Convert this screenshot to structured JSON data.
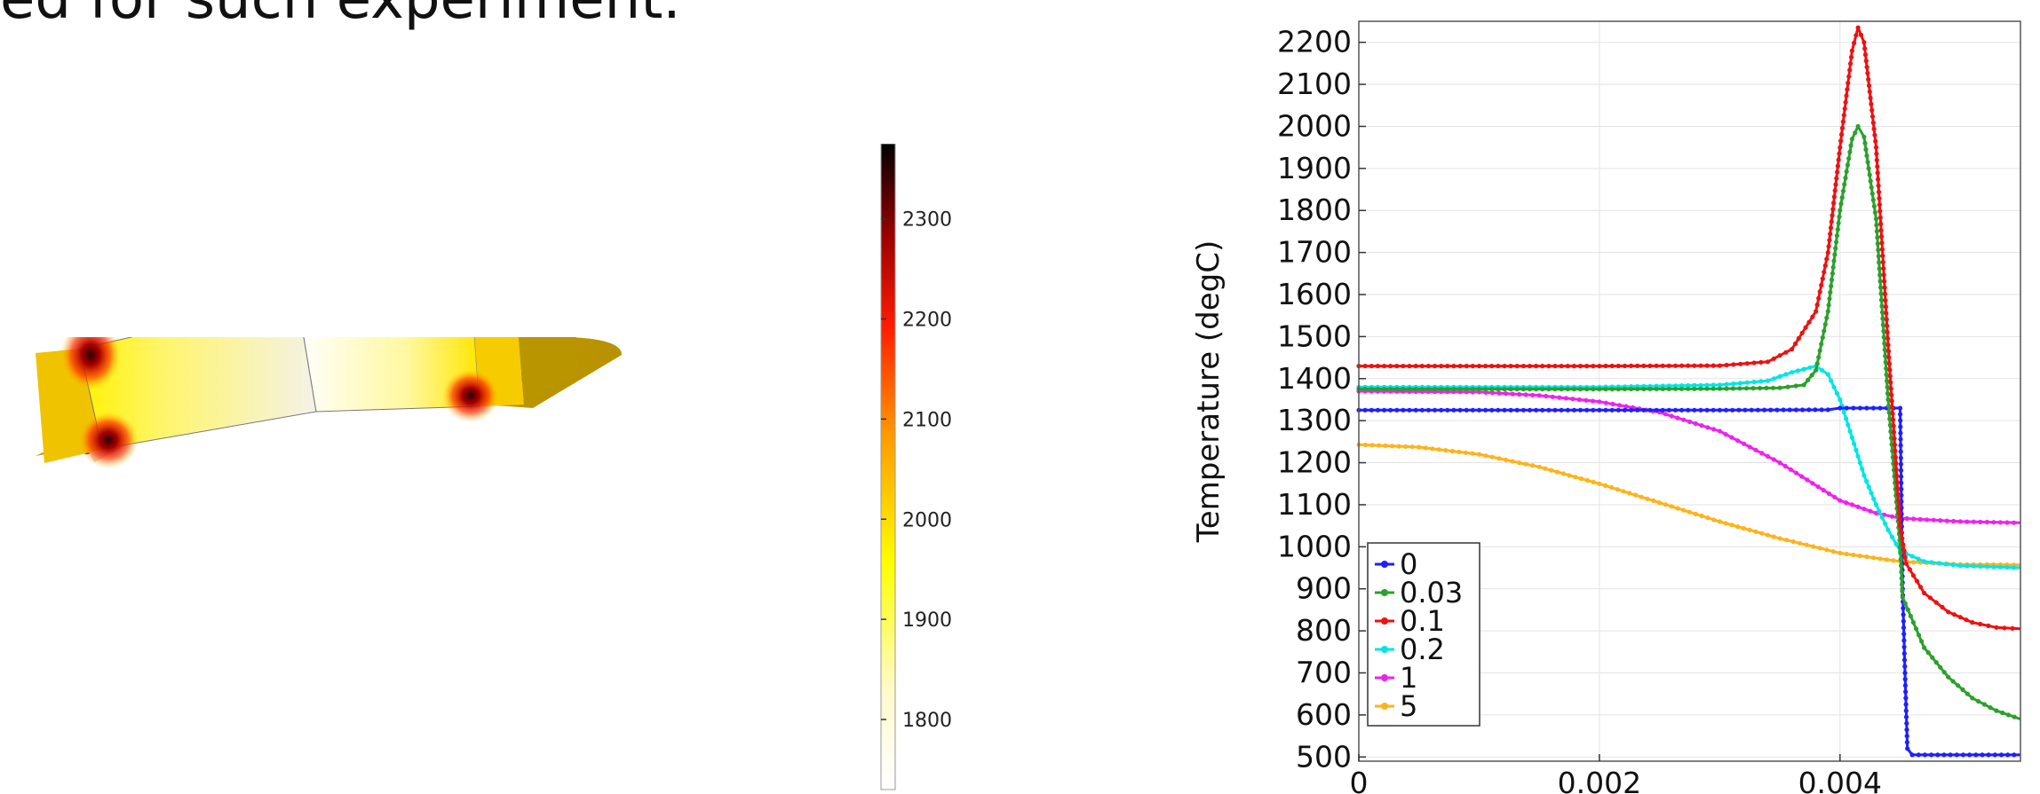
{
  "heading": "ed for such experiment.",
  "colorbar": {
    "ticks": [
      1800,
      1900,
      2000,
      2100,
      2200,
      2300
    ],
    "range": [
      1730,
      2375
    ]
  },
  "chart_data": {
    "type": "line",
    "title": "",
    "xlabel": "",
    "ylabel": "Temperature (degC)",
    "xlim": [
      0,
      0.0055
    ],
    "ylim": [
      490,
      2250
    ],
    "xticks": [
      "0",
      "0.002",
      "0.004"
    ],
    "xtick_values": [
      0,
      0.002,
      0.004
    ],
    "yticks": [
      500,
      600,
      700,
      800,
      900,
      1000,
      1100,
      1200,
      1300,
      1400,
      1500,
      1600,
      1700,
      1800,
      1900,
      2000,
      2100,
      2200
    ],
    "grid": true,
    "legend": "bottom-left",
    "series": [
      {
        "name": "0",
        "color": "#1f1fff",
        "points": [
          [
            0,
            1325
          ],
          [
            0.001,
            1325
          ],
          [
            0.002,
            1325
          ],
          [
            0.003,
            1325
          ],
          [
            0.0039,
            1326
          ],
          [
            0.004,
            1330
          ],
          [
            0.0045,
            1330
          ],
          [
            0.00452,
            900
          ],
          [
            0.00454,
            700
          ],
          [
            0.00456,
            520
          ],
          [
            0.0046,
            505
          ],
          [
            0.0055,
            505
          ]
        ]
      },
      {
        "name": "0.03",
        "color": "#2ca02c",
        "points": [
          [
            0,
            1375
          ],
          [
            0.001,
            1375
          ],
          [
            0.002,
            1375
          ],
          [
            0.003,
            1376
          ],
          [
            0.0035,
            1378
          ],
          [
            0.0037,
            1385
          ],
          [
            0.0038,
            1420
          ],
          [
            0.0039,
            1560
          ],
          [
            0.004,
            1800
          ],
          [
            0.0041,
            1970
          ],
          [
            0.00415,
            2000
          ],
          [
            0.0042,
            1975
          ],
          [
            0.0043,
            1780
          ],
          [
            0.0044,
            1350
          ],
          [
            0.0045,
            1000
          ],
          [
            0.00452,
            880
          ],
          [
            0.0047,
            760
          ],
          [
            0.0049,
            690
          ],
          [
            0.0051,
            640
          ],
          [
            0.0053,
            610
          ],
          [
            0.0055,
            590
          ]
        ]
      },
      {
        "name": "0.1",
        "color": "#ee1111",
        "points": [
          [
            0,
            1430
          ],
          [
            0.001,
            1430
          ],
          [
            0.002,
            1430
          ],
          [
            0.003,
            1431
          ],
          [
            0.0034,
            1440
          ],
          [
            0.0036,
            1470
          ],
          [
            0.0038,
            1560
          ],
          [
            0.0039,
            1700
          ],
          [
            0.004,
            1950
          ],
          [
            0.0041,
            2180
          ],
          [
            0.00415,
            2235
          ],
          [
            0.0042,
            2200
          ],
          [
            0.0043,
            1950
          ],
          [
            0.0044,
            1480
          ],
          [
            0.0045,
            1050
          ],
          [
            0.00455,
            960
          ],
          [
            0.0047,
            890
          ],
          [
            0.0049,
            845
          ],
          [
            0.0051,
            820
          ],
          [
            0.0053,
            808
          ],
          [
            0.0055,
            805
          ]
        ]
      },
      {
        "name": "0.2",
        "color": "#00e5e5",
        "points": [
          [
            0,
            1380
          ],
          [
            0.001,
            1380
          ],
          [
            0.002,
            1380
          ],
          [
            0.003,
            1385
          ],
          [
            0.0034,
            1395
          ],
          [
            0.0036,
            1415
          ],
          [
            0.0038,
            1430
          ],
          [
            0.0039,
            1410
          ],
          [
            0.004,
            1350
          ],
          [
            0.0041,
            1260
          ],
          [
            0.0042,
            1170
          ],
          [
            0.0043,
            1100
          ],
          [
            0.0044,
            1040
          ],
          [
            0.0045,
            990
          ],
          [
            0.0047,
            965
          ],
          [
            0.005,
            955
          ],
          [
            0.0055,
            950
          ]
        ]
      },
      {
        "name": "1",
        "color": "#ee22ee",
        "points": [
          [
            0,
            1370
          ],
          [
            0.001,
            1368
          ],
          [
            0.0015,
            1360
          ],
          [
            0.002,
            1345
          ],
          [
            0.0025,
            1320
          ],
          [
            0.003,
            1275
          ],
          [
            0.0035,
            1200
          ],
          [
            0.004,
            1110
          ],
          [
            0.0043,
            1080
          ],
          [
            0.0045,
            1068
          ],
          [
            0.005,
            1060
          ],
          [
            0.0055,
            1057
          ]
        ]
      },
      {
        "name": "5",
        "color": "#ffb31a",
        "points": [
          [
            0,
            1243
          ],
          [
            0.0005,
            1237
          ],
          [
            0.001,
            1220
          ],
          [
            0.0015,
            1190
          ],
          [
            0.002,
            1150
          ],
          [
            0.0025,
            1105
          ],
          [
            0.003,
            1060
          ],
          [
            0.0035,
            1020
          ],
          [
            0.004,
            985
          ],
          [
            0.0045,
            965
          ],
          [
            0.005,
            958
          ],
          [
            0.0055,
            957
          ]
        ]
      }
    ]
  }
}
